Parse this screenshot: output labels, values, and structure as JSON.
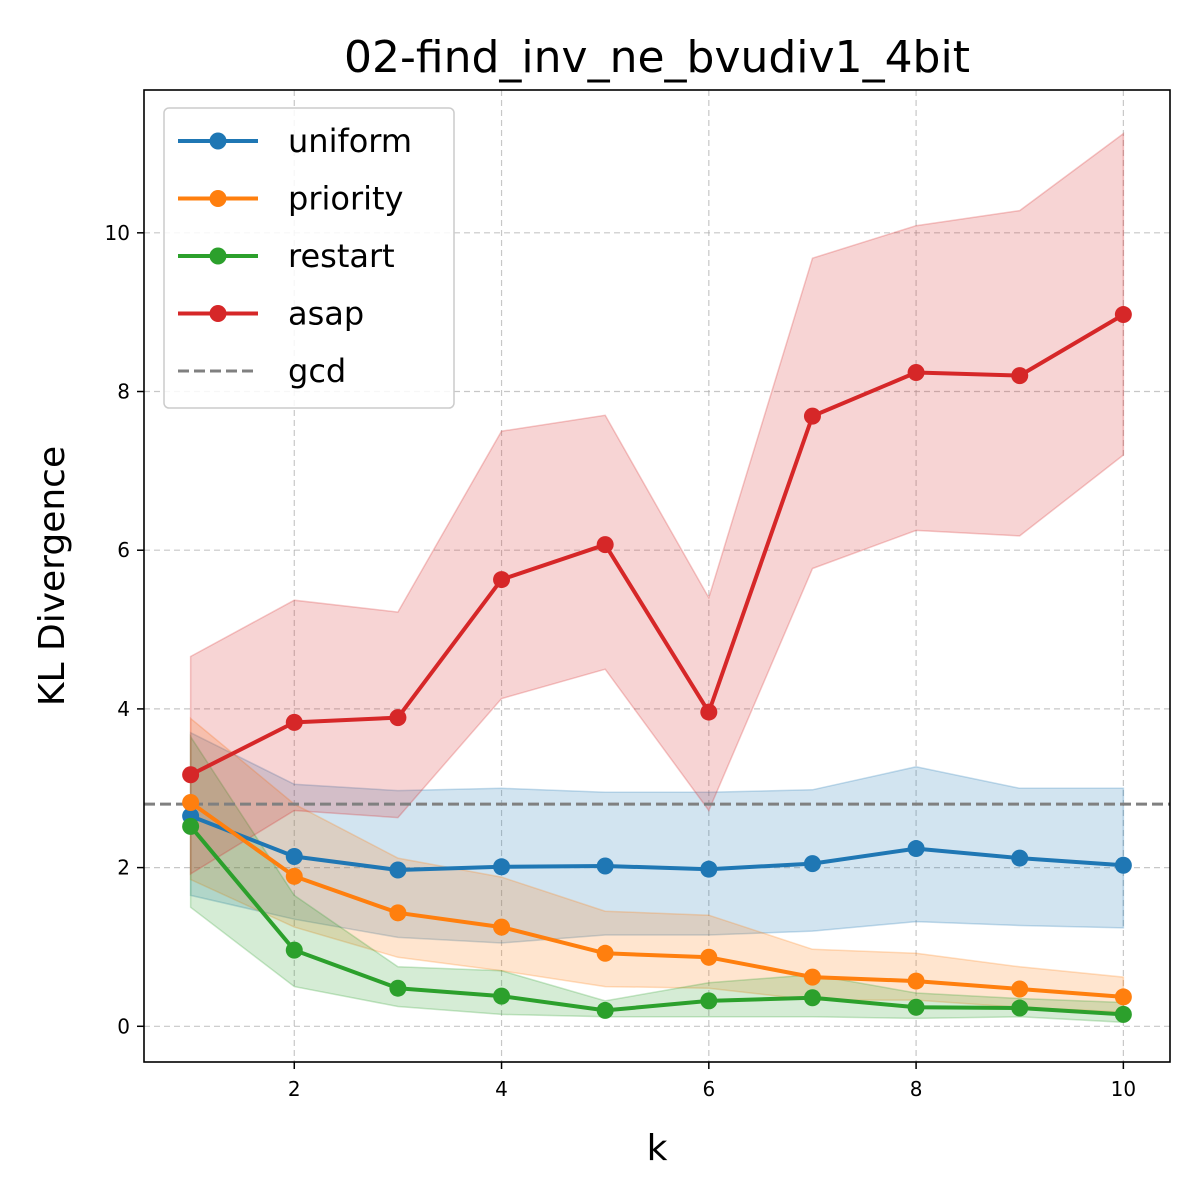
{
  "chart_data": {
    "type": "line",
    "title": "02-find_inv_ne_bvudiv1_4bit",
    "xlabel": "k",
    "ylabel": "KL Divergence",
    "xlim": [
      0.55,
      10.45
    ],
    "ylim": [
      -0.45,
      11.8
    ],
    "xticks": [
      2,
      4,
      6,
      8,
      10
    ],
    "yticks": [
      0,
      2,
      4,
      6,
      8,
      10
    ],
    "grid": true,
    "legend_position": "top-left",
    "x": [
      1,
      2,
      3,
      4,
      5,
      6,
      7,
      8,
      9,
      10
    ],
    "series": [
      {
        "name": "uniform",
        "color": "#1f77b4",
        "values": [
          2.65,
          2.14,
          1.97,
          2.01,
          2.02,
          1.98,
          2.05,
          2.24,
          2.12,
          2.03
        ],
        "lower": [
          1.65,
          1.35,
          1.12,
          1.05,
          1.15,
          1.15,
          1.2,
          1.32,
          1.27,
          1.24
        ],
        "upper": [
          3.7,
          3.05,
          2.97,
          3.0,
          2.95,
          2.95,
          2.98,
          3.27,
          3.0,
          3.0
        ]
      },
      {
        "name": "priority",
        "color": "#ff7f0e",
        "values": [
          2.82,
          1.89,
          1.43,
          1.25,
          0.92,
          0.87,
          0.62,
          0.57,
          0.47,
          0.37
        ],
        "lower": [
          1.85,
          1.25,
          0.87,
          0.7,
          0.5,
          0.48,
          0.33,
          0.33,
          0.24,
          0.18
        ],
        "upper": [
          3.88,
          2.8,
          2.12,
          1.88,
          1.45,
          1.4,
          0.97,
          0.92,
          0.75,
          0.62
        ]
      },
      {
        "name": "restart",
        "color": "#2ca02c",
        "values": [
          2.52,
          0.96,
          0.48,
          0.38,
          0.2,
          0.32,
          0.36,
          0.24,
          0.23,
          0.15
        ],
        "lower": [
          1.5,
          0.5,
          0.25,
          0.15,
          0.12,
          0.12,
          0.12,
          0.1,
          0.12,
          0.05
        ],
        "upper": [
          3.65,
          1.65,
          0.75,
          0.7,
          0.32,
          0.55,
          0.65,
          0.42,
          0.35,
          0.3
        ]
      },
      {
        "name": "asap",
        "color": "#d62728",
        "values": [
          3.17,
          3.83,
          3.89,
          5.63,
          6.07,
          3.96,
          7.69,
          8.24,
          8.2,
          8.97
        ],
        "lower": [
          1.92,
          2.72,
          2.63,
          4.13,
          4.5,
          2.72,
          5.77,
          6.25,
          6.18,
          7.2
        ],
        "upper": [
          4.66,
          5.37,
          5.22,
          7.5,
          7.7,
          5.4,
          9.68,
          10.09,
          10.28,
          11.25
        ]
      }
    ],
    "reference_line": {
      "name": "gcd",
      "value": 2.8,
      "color": "#808080",
      "style": "dashed"
    }
  }
}
